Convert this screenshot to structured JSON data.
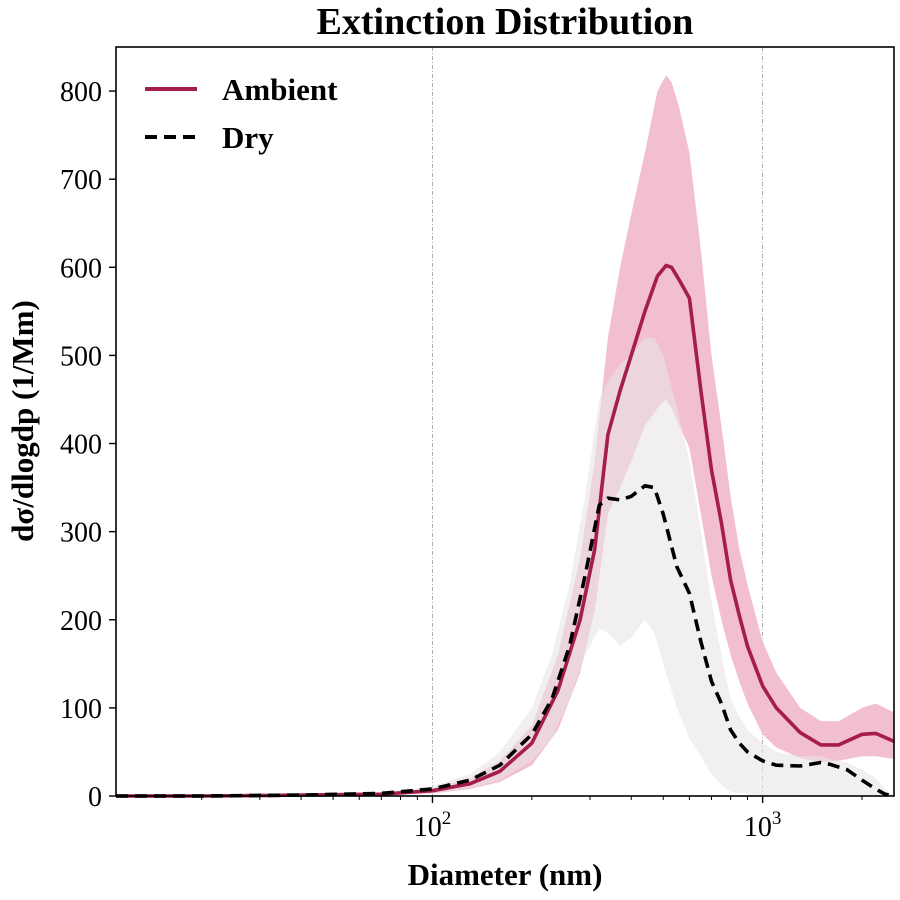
{
  "chart_data": {
    "type": "line",
    "title": "Extinction Distribution",
    "xlabel": "Diameter (nm)",
    "ylabel": "dσ/dlogdp (1/Mm)",
    "xscale": "log",
    "xlim": [
      11,
      2500
    ],
    "ylim": [
      0,
      850
    ],
    "grid": "vertical dash-dot at major x ticks",
    "legend_position": "top-left",
    "x_ticks": [
      {
        "value": 100,
        "base": "10",
        "exp": "2"
      },
      {
        "value": 1000,
        "base": "10",
        "exp": "3"
      }
    ],
    "y_ticks": [
      0,
      100,
      200,
      300,
      400,
      500,
      600,
      700,
      800
    ],
    "series": [
      {
        "name": "Ambient",
        "color": "#a51c4e",
        "style": "solid",
        "band_color": "#f2bfd0",
        "x": [
          11,
          20,
          40,
          70,
          100,
          130,
          160,
          200,
          240,
          280,
          310,
          340,
          370,
          400,
          440,
          480,
          510,
          530,
          560,
          600,
          650,
          700,
          750,
          800,
          850,
          900,
          1000,
          1100,
          1300,
          1500,
          1700,
          2000,
          2200,
          2500
        ],
        "y": [
          0,
          0,
          1,
          2,
          6,
          14,
          28,
          60,
          120,
          200,
          280,
          410,
          460,
          500,
          550,
          590,
          602,
          600,
          585,
          565,
          460,
          370,
          310,
          245,
          205,
          170,
          125,
          100,
          72,
          58,
          58,
          70,
          71,
          62
        ],
        "lower": [
          0,
          0,
          0,
          1,
          3,
          8,
          16,
          35,
          75,
          140,
          210,
          320,
          350,
          380,
          420,
          440,
          450,
          440,
          420,
          395,
          320,
          250,
          200,
          160,
          130,
          105,
          70,
          55,
          43,
          38,
          40,
          45,
          45,
          42
        ],
        "upper": [
          0,
          0,
          1,
          3,
          9,
          20,
          40,
          80,
          160,
          270,
          380,
          520,
          600,
          660,
          730,
          800,
          818,
          810,
          780,
          730,
          620,
          500,
          420,
          340,
          280,
          240,
          175,
          140,
          100,
          85,
          85,
          100,
          105,
          95
        ]
      },
      {
        "name": "Dry",
        "color": "#000000",
        "style": "dashed",
        "band_color": "#e8e4e6",
        "x": [
          11,
          20,
          40,
          70,
          100,
          130,
          160,
          200,
          230,
          260,
          290,
          320,
          340,
          370,
          400,
          440,
          470,
          500,
          550,
          600,
          650,
          700,
          750,
          800,
          850,
          900,
          1000,
          1100,
          1300,
          1500,
          1600,
          1800,
          2000,
          2200,
          2350,
          2500
        ],
        "y": [
          0,
          0,
          1,
          3,
          8,
          18,
          35,
          70,
          110,
          170,
          250,
          330,
          338,
          336,
          340,
          352,
          350,
          320,
          260,
          230,
          175,
          130,
          105,
          75,
          60,
          50,
          40,
          35,
          34,
          38,
          36,
          30,
          18,
          8,
          2,
          0
        ],
        "lower": [
          0,
          0,
          0,
          1,
          4,
          9,
          18,
          40,
          65,
          110,
          160,
          190,
          185,
          170,
          180,
          200,
          185,
          150,
          100,
          65,
          45,
          25,
          12,
          5,
          3,
          2,
          1,
          1,
          1,
          1,
          1,
          1,
          1,
          1,
          1,
          0
        ],
        "upper": [
          0,
          0,
          1,
          4,
          11,
          25,
          50,
          100,
          160,
          240,
          340,
          450,
          470,
          490,
          500,
          520,
          520,
          500,
          440,
          380,
          300,
          220,
          160,
          110,
          90,
          75,
          60,
          50,
          45,
          45,
          42,
          38,
          30,
          20,
          8,
          0
        ]
      }
    ]
  }
}
